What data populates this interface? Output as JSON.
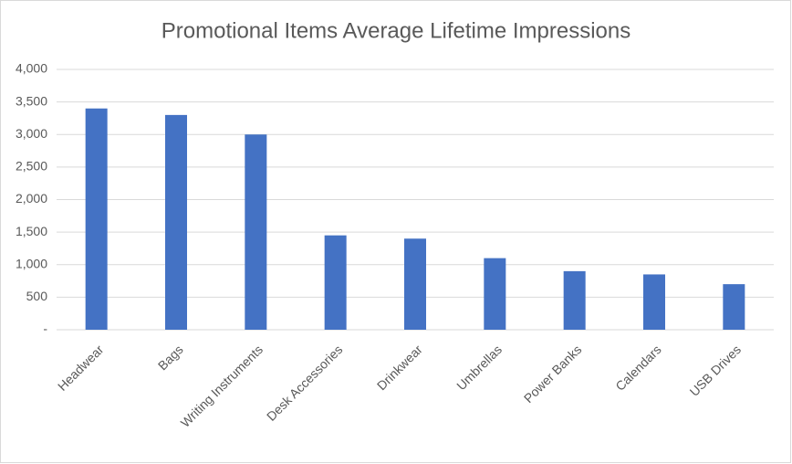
{
  "chart_data": {
    "type": "bar",
    "title": "Promotional Items Average Lifetime Impressions",
    "categories": [
      "Headwear",
      "Bags",
      "Writing Instruments",
      "Desk Accessories",
      "Drinkwear",
      "Umbrellas",
      "Power Banks",
      "Calendars",
      "USB Drives"
    ],
    "values": [
      3400,
      3300,
      3000,
      1450,
      1400,
      1100,
      900,
      850,
      700
    ],
    "color": "#4472c4",
    "ylim": [
      0,
      4000
    ],
    "yticks": [
      {
        "value": 0,
        "label": "-"
      },
      500,
      {
        "value": 1000,
        "label": "1,000"
      },
      {
        "value": 1500,
        "label": "1,500"
      },
      {
        "value": 2000,
        "label": "2,000"
      },
      {
        "value": 2500,
        "label": "2,500"
      },
      {
        "value": 3000,
        "label": "3,000"
      },
      {
        "value": 3500,
        "label": "3,500"
      },
      {
        "value": 4000,
        "label": "4,000"
      }
    ],
    "grid": true
  }
}
